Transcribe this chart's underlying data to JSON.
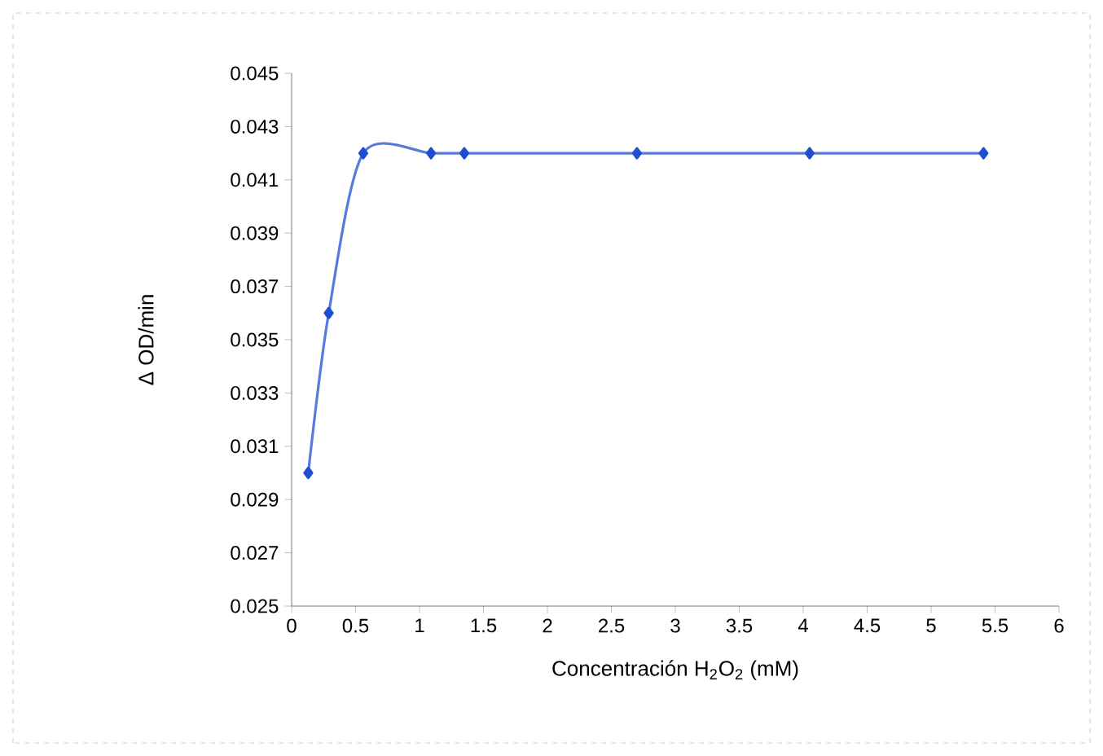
{
  "chart_data": {
    "type": "line",
    "xlabel": "Concentración H$_{2}$O$_{2}$ (mM)",
    "ylabel": "Δ OD/min",
    "x": [
      0.13,
      0.29,
      0.56,
      1.09,
      1.35,
      2.7,
      4.05,
      5.41
    ],
    "series": [
      {
        "color": "#1f4fd0",
        "values": [
          0.03,
          0.036,
          0.042,
          0.042,
          0.042,
          0.042,
          0.042,
          0.042
        ]
      }
    ],
    "xlim": [
      0,
      6
    ],
    "xticks": [
      0,
      0.5,
      1,
      1.5,
      2,
      2.5,
      3,
      3.5,
      4,
      4.5,
      5,
      5.5,
      6
    ],
    "ylim": [
      0.025,
      0.045
    ],
    "yticks": [
      0.025,
      0.027,
      0.029,
      0.031,
      0.033,
      0.035,
      0.037,
      0.039,
      0.041,
      0.043,
      0.045
    ],
    "marker": "diamond",
    "line_style": "solid"
  }
}
